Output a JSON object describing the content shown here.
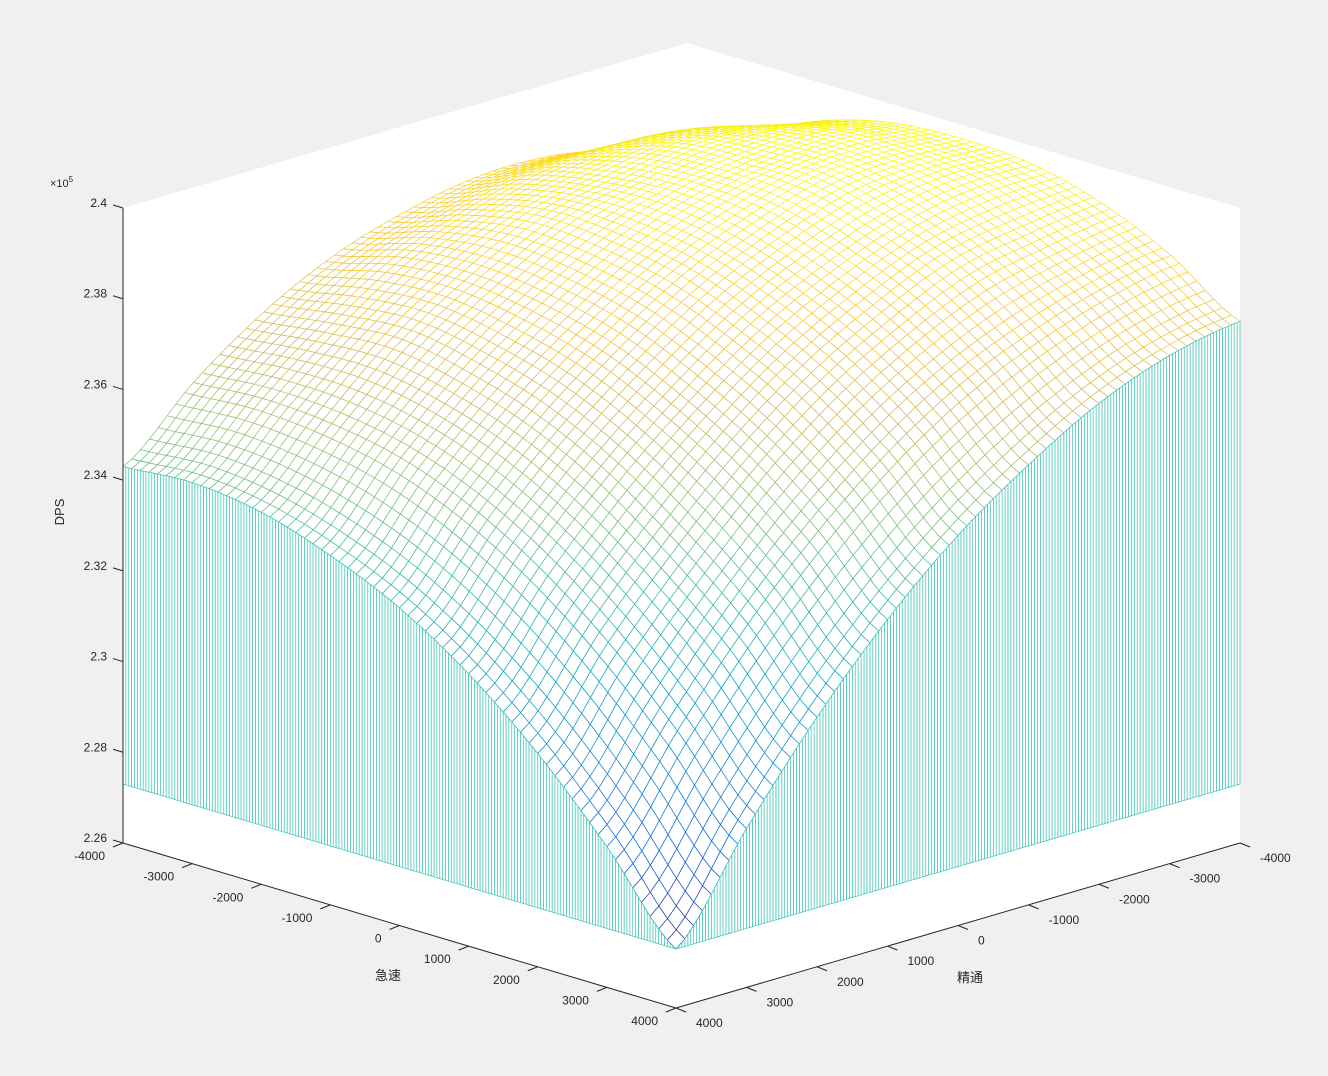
{
  "chart_data": {
    "type": "mesh3d",
    "title": "",
    "xlabel": "急速",
    "ylabel": "精通",
    "zlabel": "DPS",
    "z_exponent_label": "×10",
    "z_exponent_power": "5",
    "xlim": [
      -4000,
      4000
    ],
    "ylim": [
      -4000,
      4000
    ],
    "zlim": [
      2.26,
      2.4
    ],
    "z_units": "×10^5",
    "x_ticks": [
      "-4000",
      "-3000",
      "-2000",
      "-1000",
      "0",
      "1000",
      "2000",
      "3000",
      "4000"
    ],
    "y_ticks": [
      "-4000",
      "-3000",
      "-2000",
      "-1000",
      "0",
      "1000",
      "2000",
      "3000",
      "4000"
    ],
    "z_ticks": [
      "2.26",
      "2.28",
      "2.3",
      "2.32",
      "2.34",
      "2.36",
      "2.38",
      "2.4"
    ],
    "grid_x": [
      -4000,
      -3000,
      -2000,
      -1000,
      0,
      1000,
      2000,
      3000,
      4000
    ],
    "grid_y": [
      -4000,
      -3000,
      -2000,
      -1000,
      0,
      1000,
      2000,
      3000,
      4000
    ],
    "z_rows_by_x_then_y": [
      [
        2.376,
        2.381,
        2.384,
        2.384,
        2.381,
        2.376,
        2.368,
        2.357,
        2.343
      ],
      [
        2.385,
        2.39,
        2.391,
        2.39,
        2.386,
        2.38,
        2.37,
        2.358,
        2.344
      ],
      [
        2.392,
        2.395,
        2.396,
        2.393,
        2.389,
        2.381,
        2.371,
        2.357,
        2.342
      ],
      [
        2.396,
        2.398,
        2.397,
        2.394,
        2.388,
        2.379,
        2.368,
        2.354,
        2.337
      ],
      [
        2.397,
        2.398,
        2.397,
        2.392,
        2.385,
        2.375,
        2.363,
        2.348,
        2.33
      ],
      [
        2.396,
        2.396,
        2.393,
        2.387,
        2.379,
        2.368,
        2.355,
        2.339,
        2.32
      ],
      [
        2.392,
        2.39,
        2.387,
        2.38,
        2.371,
        2.359,
        2.344,
        2.327,
        2.307
      ],
      [
        2.385,
        2.382,
        2.377,
        2.37,
        2.36,
        2.347,
        2.331,
        2.312,
        2.291
      ],
      [
        2.375,
        2.372,
        2.366,
        2.357,
        2.346,
        2.332,
        2.315,
        2.295,
        2.273
      ]
    ],
    "curtain_base": 2.273,
    "colormap": "parula",
    "colormap_stops": [
      "#352A87",
      "#0363E1",
      "#1485D4",
      "#06A7C6",
      "#38B99E",
      "#92BF73",
      "#D9BA56",
      "#FCCE2E",
      "#F9FB0E"
    ],
    "curtain_color": "#3cc4b4",
    "axes_background": "#ffffff",
    "figure_background": "#f0f0f0",
    "grid": false
  }
}
